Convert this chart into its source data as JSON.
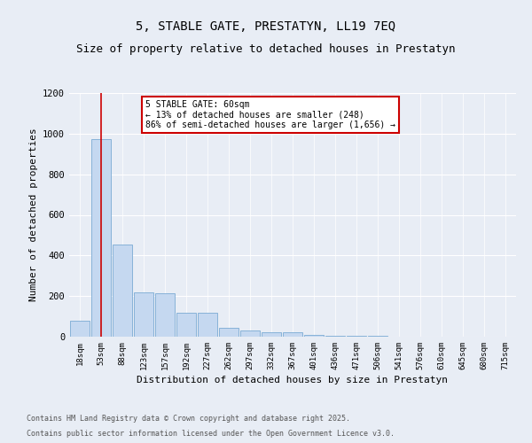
{
  "title": "5, STABLE GATE, PRESTATYN, LL19 7EQ",
  "subtitle": "Size of property relative to detached houses in Prestatyn",
  "xlabel": "Distribution of detached houses by size in Prestatyn",
  "ylabel": "Number of detached properties",
  "categories": [
    "18sqm",
    "53sqm",
    "88sqm",
    "123sqm",
    "157sqm",
    "192sqm",
    "227sqm",
    "262sqm",
    "297sqm",
    "332sqm",
    "367sqm",
    "401sqm",
    "436sqm",
    "471sqm",
    "506sqm",
    "541sqm",
    "576sqm",
    "610sqm",
    "645sqm",
    "680sqm",
    "715sqm"
  ],
  "values": [
    80,
    975,
    455,
    220,
    215,
    120,
    120,
    45,
    30,
    20,
    20,
    10,
    5,
    5,
    3,
    2,
    1,
    1,
    0,
    0,
    0
  ],
  "bar_color": "#c5d8f0",
  "bar_edge_color": "#7baad4",
  "vline_x_idx": 1,
  "vline_color": "#cc0000",
  "annotation_text": "5 STABLE GATE: 60sqm\n← 13% of detached houses are smaller (248)\n86% of semi-detached houses are larger (1,656) →",
  "annotation_box_edgecolor": "#cc0000",
  "ylim": [
    0,
    1200
  ],
  "yticks": [
    0,
    200,
    400,
    600,
    800,
    1000,
    1200
  ],
  "footer_line1": "Contains HM Land Registry data © Crown copyright and database right 2025.",
  "footer_line2": "Contains public sector information licensed under the Open Government Licence v3.0.",
  "bg_color": "#e8edf5",
  "plot_bg_color": "#e8edf5",
  "title_fontsize": 10,
  "subtitle_fontsize": 9,
  "tick_fontsize": 6.5,
  "label_fontsize": 8,
  "footer_fontsize": 6
}
